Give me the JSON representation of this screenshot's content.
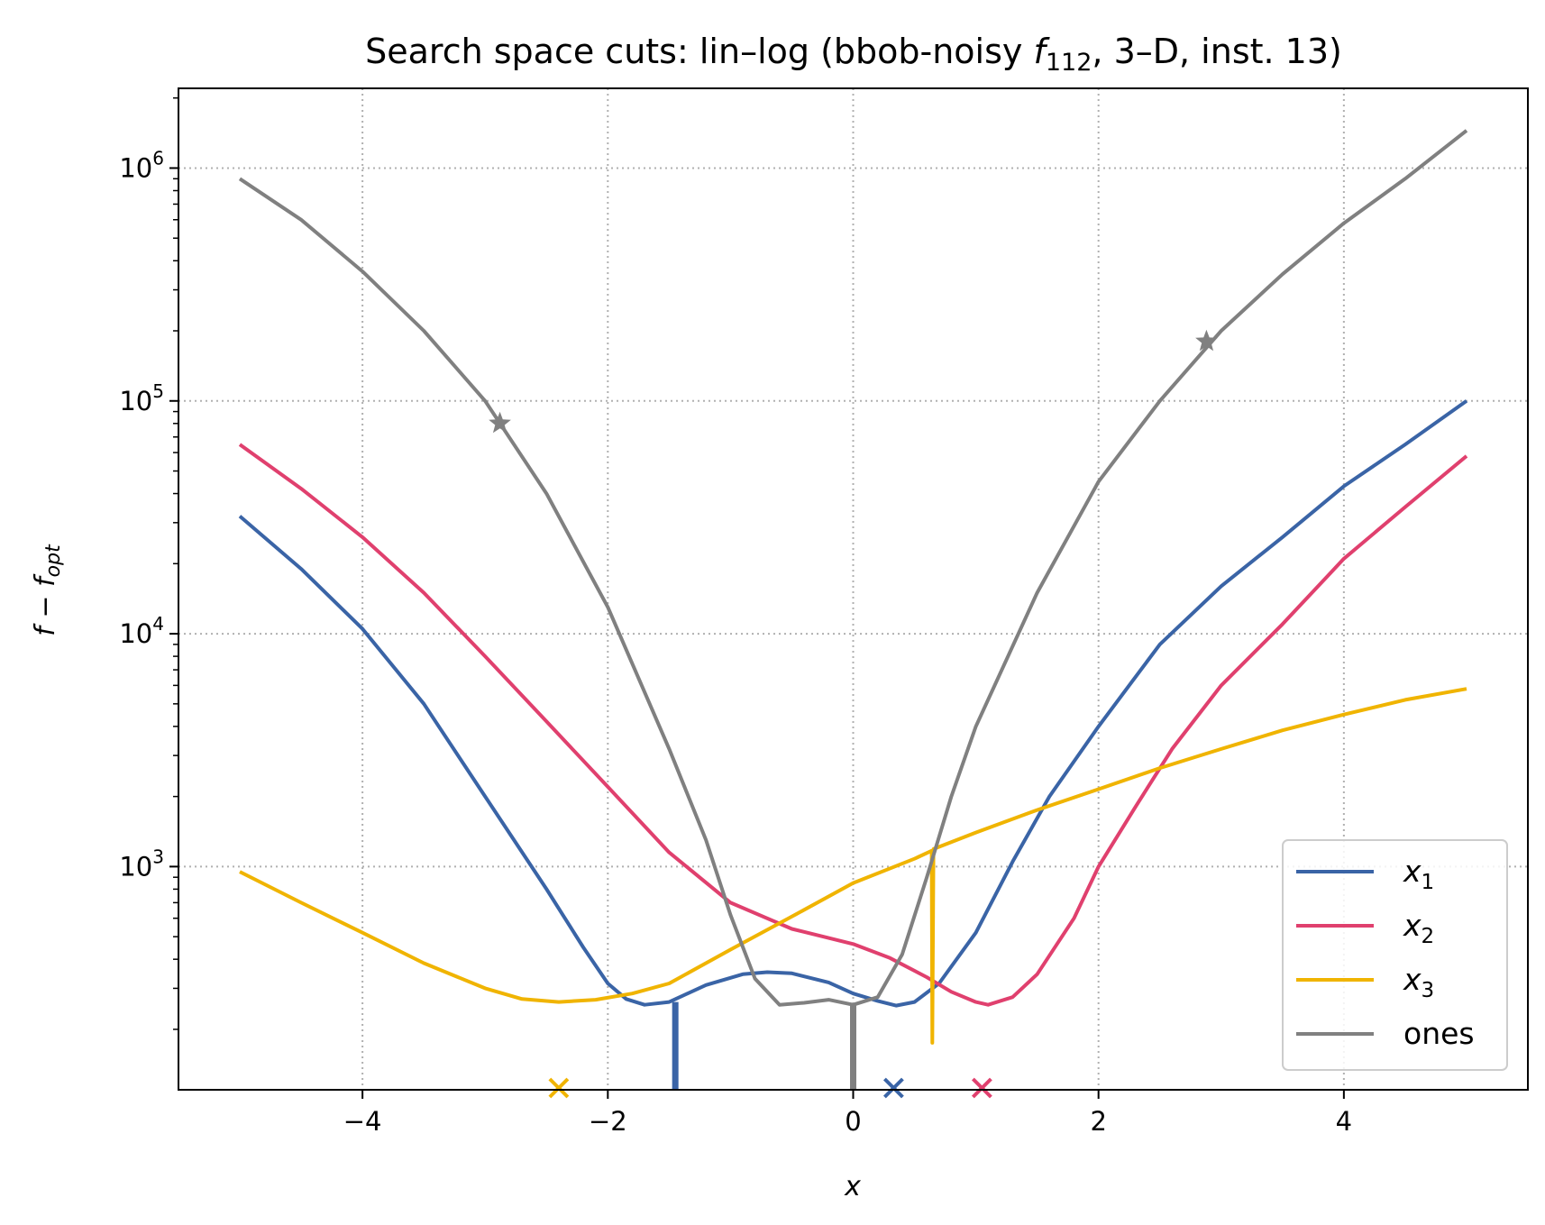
{
  "chart_data": {
    "type": "line",
    "title": {
      "prefix": "Search space cuts: lin–log (bbob-noisy ",
      "func_symbol": "f",
      "func_sub": "112",
      "suffix": ", 3–D, inst. 13)"
    },
    "xlabel": "x",
    "ylabel": {
      "main": "f − f",
      "sub": "opt"
    },
    "xlim": [
      -5.5,
      5.5
    ],
    "ylim": [
      110,
      2200000
    ],
    "yscale": "log",
    "grid": true,
    "legend_position": "lower-right",
    "x_ticks": [
      -4,
      -2,
      0,
      2,
      4
    ],
    "x_tick_labels": [
      "−4",
      "−2",
      "0",
      "2",
      "4"
    ],
    "y_ticks": [
      1000,
      10000,
      100000,
      1000000
    ],
    "y_tick_labels": [
      {
        "base": "10",
        "exp": "3"
      },
      {
        "base": "10",
        "exp": "4"
      },
      {
        "base": "10",
        "exp": "5"
      },
      {
        "base": "10",
        "exp": "6"
      }
    ],
    "series": [
      {
        "name": "x1",
        "label_main": "x",
        "label_sub": "1",
        "color": "#3a64a6",
        "points": [
          [
            -5,
            32000
          ],
          [
            -4.5,
            19000
          ],
          [
            -4,
            10500
          ],
          [
            -3.5,
            5000
          ],
          [
            -3,
            2000
          ],
          [
            -2.5,
            800
          ],
          [
            -2.2,
            450
          ],
          [
            -2,
            315
          ],
          [
            -1.85,
            270
          ],
          [
            -1.7,
            255
          ],
          [
            -1.5,
            262
          ],
          [
            -1.2,
            310
          ],
          [
            -0.9,
            345
          ],
          [
            -0.7,
            352
          ],
          [
            -0.5,
            348
          ],
          [
            -0.2,
            318
          ],
          [
            0,
            285
          ],
          [
            0.2,
            265
          ],
          [
            0.35,
            253
          ],
          [
            0.5,
            262
          ],
          [
            0.7,
            315
          ],
          [
            1,
            520
          ],
          [
            1.3,
            1050
          ],
          [
            1.6,
            2000
          ],
          [
            2,
            4000
          ],
          [
            2.5,
            9000
          ],
          [
            3,
            16000
          ],
          [
            3.5,
            26000
          ],
          [
            4,
            43000
          ],
          [
            4.5,
            65000
          ],
          [
            5,
            100000
          ]
        ]
      },
      {
        "name": "x2",
        "label_main": "x",
        "label_sub": "2",
        "color": "#e0406e",
        "points": [
          [
            -5,
            65000
          ],
          [
            -4.5,
            42000
          ],
          [
            -4,
            26000
          ],
          [
            -3.5,
            15000
          ],
          [
            -3,
            8000
          ],
          [
            -2.5,
            4200
          ],
          [
            -2,
            2200
          ],
          [
            -1.5,
            1150
          ],
          [
            -1,
            700
          ],
          [
            -0.5,
            540
          ],
          [
            0,
            465
          ],
          [
            0.3,
            405
          ],
          [
            0.6,
            335
          ],
          [
            0.8,
            290
          ],
          [
            1,
            262
          ],
          [
            1.1,
            255
          ],
          [
            1.3,
            275
          ],
          [
            1.5,
            345
          ],
          [
            1.8,
            600
          ],
          [
            2,
            1000
          ],
          [
            2.3,
            1800
          ],
          [
            2.6,
            3200
          ],
          [
            3,
            6000
          ],
          [
            3.5,
            11000
          ],
          [
            4,
            21000
          ],
          [
            4.5,
            35000
          ],
          [
            5,
            58000
          ]
        ]
      },
      {
        "name": "x3",
        "label_main": "x",
        "label_sub": "3",
        "color": "#f0b400",
        "points": [
          [
            -5,
            950
          ],
          [
            -4.5,
            700
          ],
          [
            -4,
            520
          ],
          [
            -3.5,
            385
          ],
          [
            -3,
            300
          ],
          [
            -2.7,
            270
          ],
          [
            -2.4,
            262
          ],
          [
            -2.1,
            268
          ],
          [
            -1.8,
            285
          ],
          [
            -1.5,
            315
          ],
          [
            -1,
            440
          ],
          [
            -0.5,
            610
          ],
          [
            0,
            850
          ],
          [
            0.5,
            1080
          ],
          [
            0.64,
            1170
          ],
          [
            0.645,
            175
          ],
          [
            0.655,
            1190
          ],
          [
            1,
            1400
          ],
          [
            1.5,
            1750
          ],
          [
            2,
            2150
          ],
          [
            2.5,
            2650
          ],
          [
            3,
            3200
          ],
          [
            3.5,
            3850
          ],
          [
            4,
            4500
          ],
          [
            4.5,
            5200
          ],
          [
            5,
            5800
          ]
        ]
      },
      {
        "name": "ones",
        "label_main": "ones",
        "label_sub": "",
        "color": "#808080",
        "points": [
          [
            -5,
            900000
          ],
          [
            -4.5,
            600000
          ],
          [
            -4,
            360000
          ],
          [
            -3.5,
            200000
          ],
          [
            -3,
            100000
          ],
          [
            -2.5,
            40000
          ],
          [
            -2,
            13000
          ],
          [
            -1.5,
            3200
          ],
          [
            -1.2,
            1300
          ],
          [
            -1,
            620
          ],
          [
            -0.8,
            330
          ],
          [
            -0.6,
            255
          ],
          [
            -0.4,
            260
          ],
          [
            -0.2,
            268
          ],
          [
            0,
            255
          ],
          [
            0.2,
            275
          ],
          [
            0.4,
            420
          ],
          [
            0.6,
            900
          ],
          [
            0.8,
            2000
          ],
          [
            1,
            4000
          ],
          [
            1.5,
            15000
          ],
          [
            2,
            45000
          ],
          [
            2.5,
            100000
          ],
          [
            3,
            200000
          ],
          [
            3.5,
            350000
          ],
          [
            4,
            580000
          ],
          [
            4.5,
            900000
          ],
          [
            5,
            1450000
          ]
        ]
      }
    ],
    "star_markers": [
      {
        "series": "ones",
        "x": -2.88,
        "y": 80000
      },
      {
        "series": "ones",
        "x": 2.88,
        "y": 180000
      }
    ],
    "vertical_spikes": [
      {
        "series": "x1",
        "x": -1.45,
        "y_top": 262
      },
      {
        "series": "ones",
        "x": 0.0,
        "y_top": 255
      }
    ],
    "x_markers": [
      {
        "series": "x3",
        "x": -2.4
      },
      {
        "series": "x1",
        "x": 0.33
      },
      {
        "series": "x2",
        "x": 1.05
      }
    ]
  }
}
